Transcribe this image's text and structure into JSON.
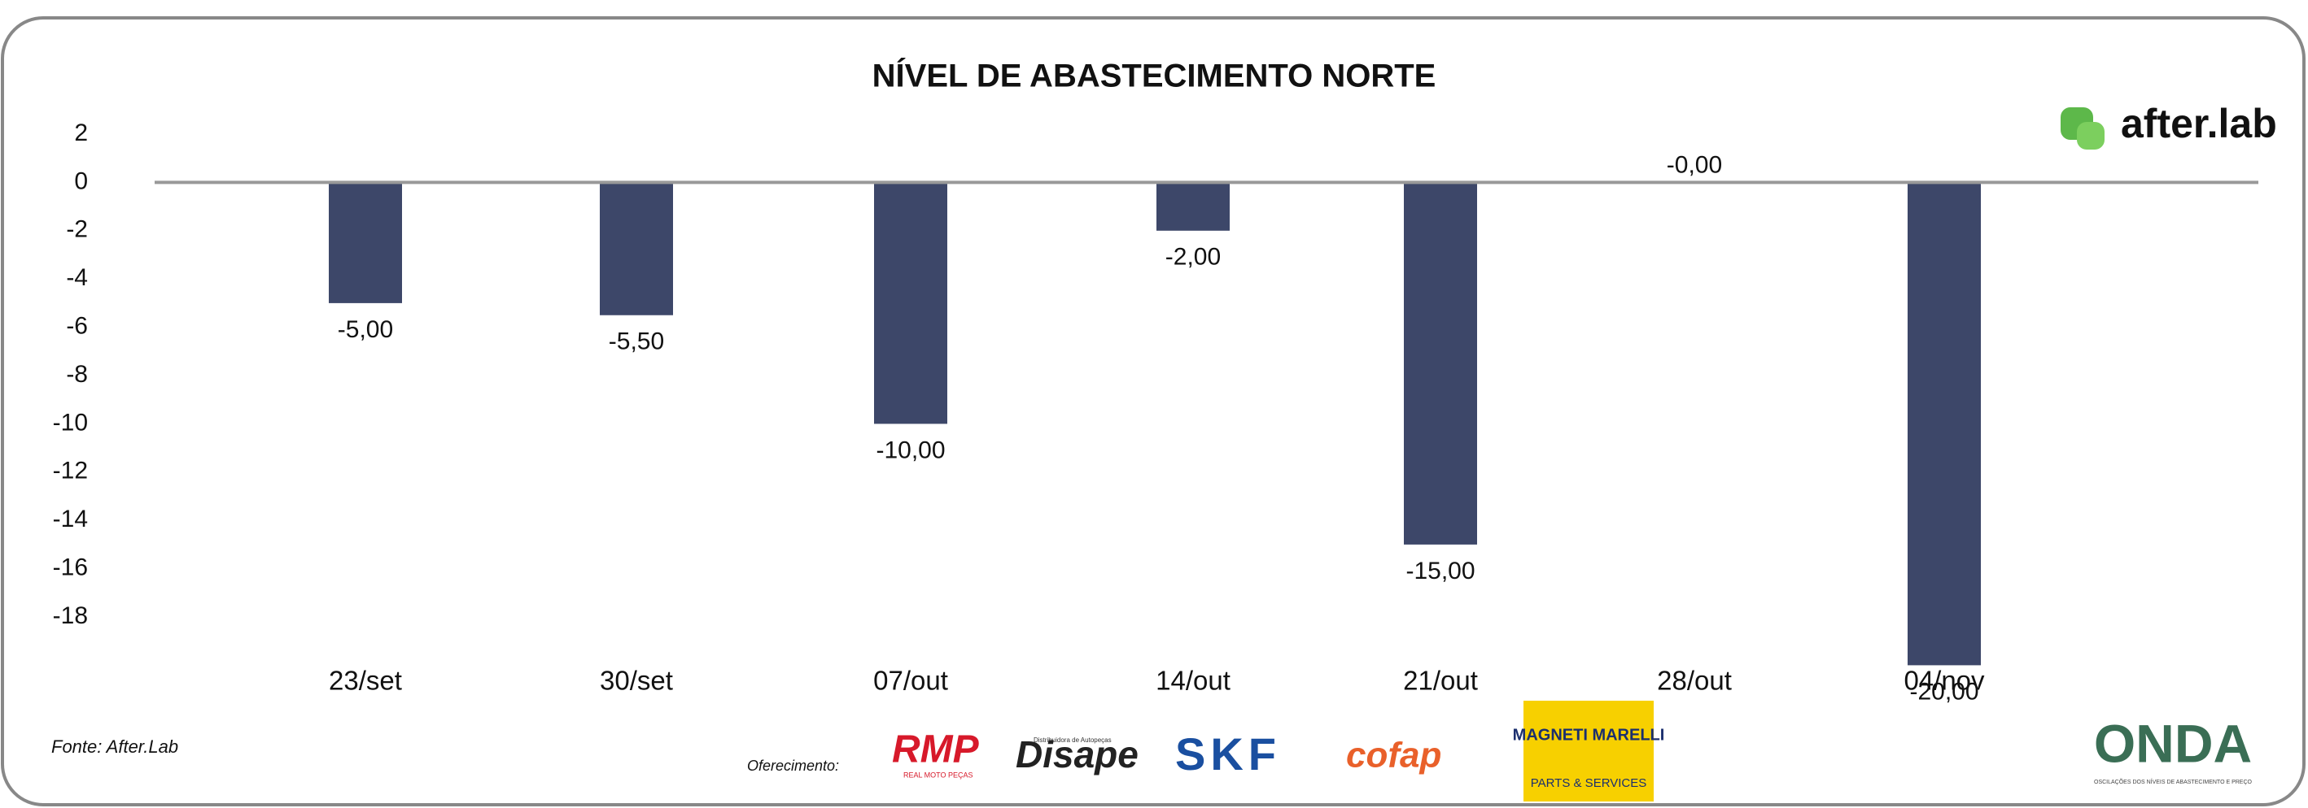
{
  "chart_data": {
    "type": "bar",
    "title": "NÍVEL DE ABASTECIMENTO NORTE",
    "categories": [
      "23/set",
      "30/set",
      "07/out",
      "14/out",
      "21/out",
      "28/out",
      "04/nov"
    ],
    "values": [
      -5,
      -5.5,
      -10,
      -2,
      -15,
      0,
      -20
    ],
    "value_labels": [
      "-5,00",
      "-5,50",
      "-10,00",
      "-2,00",
      "-15,00",
      "-0,00",
      "-20,00"
    ],
    "color": "#3d4769",
    "ylim": [
      -20,
      2
    ],
    "yticks": [
      2,
      0,
      -2,
      -4,
      -6,
      -8,
      -10,
      -12,
      -14,
      -16,
      -18
    ],
    "grid": false
  },
  "footer": {
    "source": "Fonte: After.Lab",
    "sponsor_label": "Oferecimento:"
  },
  "branding": {
    "after_lab": "after.lab",
    "rmp": "RMP",
    "rmp_sub": "REAL MOTO PEÇAS",
    "disape_sub": "Distribuidora de Autopeças",
    "disape": "Disape",
    "skf": "SKF",
    "cofap": "cofap",
    "magneti_marelli": "MAGNETI MARELLI",
    "mm_sub": "PARTS & SERVICES",
    "onda": "ONDA",
    "onda_sub": "OSCILAÇÕES DOS NÍVEIS DE ABASTECIMENTO E PREÇO"
  }
}
